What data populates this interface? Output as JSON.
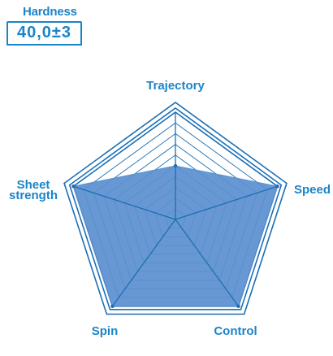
{
  "hardness": {
    "label": "Hardness",
    "value": "40,0±3"
  },
  "colors": {
    "accent": "#1b84c8",
    "fill": "#5b8fcf",
    "grid": "#1b6fb5"
  },
  "chart_data": {
    "type": "radar",
    "axes": [
      "Trajectory",
      "Speed",
      "Control",
      "Spin",
      "Sheet\nstrength"
    ],
    "axis_labels": [
      [
        "Trajectory"
      ],
      [
        "Speed"
      ],
      [
        "Control"
      ],
      [
        "Spin"
      ],
      [
        "Sheet",
        "strength"
      ]
    ],
    "values": [
      0.5,
      1.0,
      1.0,
      1.0,
      1.0
    ],
    "range": [
      0,
      1
    ],
    "rings": 10,
    "grid": true
  }
}
